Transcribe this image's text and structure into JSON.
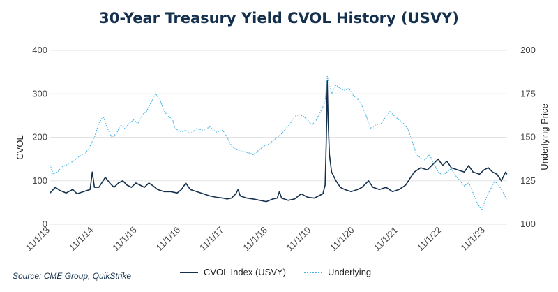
{
  "chart_data": {
    "type": "line",
    "title": "30-Year Treasury Yield CVOL History (USVY)",
    "source": "Source: CME Group, QuikStrike",
    "y_left": {
      "label": "CVOL",
      "ticks": [
        "0",
        "100",
        "200",
        "300",
        "400"
      ],
      "range": [
        0,
        400
      ]
    },
    "y_right": {
      "label": "Underlying Price",
      "ticks": [
        "100",
        "125",
        "150",
        "175",
        "200"
      ],
      "range": [
        100,
        200
      ]
    },
    "x_ticks": [
      "11/1/13",
      "11/1/14",
      "11/1/15",
      "11/1/16",
      "11/1/17",
      "11/1/18",
      "11/1/19",
      "11/1/20",
      "11/1/21",
      "11/1/22",
      "11/1/23"
    ],
    "x_range": [
      2013.833,
      2024.333
    ],
    "grid": true,
    "legend_position": "bottom",
    "series": [
      {
        "name": "CVOL Index (USVY)",
        "axis": "left",
        "color": "#14304d",
        "style": "solid",
        "points": [
          [
            2013.83,
            72
          ],
          [
            2013.95,
            85
          ],
          [
            2014.05,
            78
          ],
          [
            2014.2,
            72
          ],
          [
            2014.35,
            80
          ],
          [
            2014.45,
            70
          ],
          [
            2014.6,
            75
          ],
          [
            2014.75,
            80
          ],
          [
            2014.8,
            120
          ],
          [
            2014.85,
            85
          ],
          [
            2014.95,
            85
          ],
          [
            2015.05,
            100
          ],
          [
            2015.1,
            108
          ],
          [
            2015.2,
            95
          ],
          [
            2015.3,
            85
          ],
          [
            2015.4,
            95
          ],
          [
            2015.5,
            100
          ],
          [
            2015.6,
            90
          ],
          [
            2015.7,
            85
          ],
          [
            2015.8,
            95
          ],
          [
            2015.9,
            90
          ],
          [
            2016.0,
            85
          ],
          [
            2016.1,
            95
          ],
          [
            2016.2,
            88
          ],
          [
            2016.3,
            80
          ],
          [
            2016.45,
            75
          ],
          [
            2016.6,
            75
          ],
          [
            2016.75,
            72
          ],
          [
            2016.85,
            80
          ],
          [
            2016.95,
            95
          ],
          [
            2017.05,
            80
          ],
          [
            2017.2,
            75
          ],
          [
            2017.35,
            70
          ],
          [
            2017.5,
            65
          ],
          [
            2017.65,
            62
          ],
          [
            2017.8,
            60
          ],
          [
            2017.9,
            58
          ],
          [
            2018.0,
            60
          ],
          [
            2018.1,
            70
          ],
          [
            2018.15,
            80
          ],
          [
            2018.2,
            65
          ],
          [
            2018.35,
            60
          ],
          [
            2018.5,
            58
          ],
          [
            2018.65,
            55
          ],
          [
            2018.8,
            52
          ],
          [
            2018.95,
            58
          ],
          [
            2019.05,
            60
          ],
          [
            2019.1,
            75
          ],
          [
            2019.15,
            60
          ],
          [
            2019.3,
            55
          ],
          [
            2019.45,
            58
          ],
          [
            2019.6,
            70
          ],
          [
            2019.75,
            62
          ],
          [
            2019.9,
            60
          ],
          [
            2020.0,
            65
          ],
          [
            2020.1,
            70
          ],
          [
            2020.15,
            90
          ],
          [
            2020.18,
            200
          ],
          [
            2020.2,
            330
          ],
          [
            2020.22,
            240
          ],
          [
            2020.25,
            160
          ],
          [
            2020.3,
            120
          ],
          [
            2020.4,
            100
          ],
          [
            2020.5,
            85
          ],
          [
            2020.6,
            80
          ],
          [
            2020.75,
            75
          ],
          [
            2020.9,
            80
          ],
          [
            2021.0,
            85
          ],
          [
            2021.1,
            95
          ],
          [
            2021.15,
            100
          ],
          [
            2021.25,
            85
          ],
          [
            2021.4,
            80
          ],
          [
            2021.55,
            85
          ],
          [
            2021.7,
            75
          ],
          [
            2021.85,
            80
          ],
          [
            2022.0,
            90
          ],
          [
            2022.1,
            105
          ],
          [
            2022.2,
            120
          ],
          [
            2022.35,
            130
          ],
          [
            2022.5,
            125
          ],
          [
            2022.65,
            140
          ],
          [
            2022.75,
            150
          ],
          [
            2022.85,
            135
          ],
          [
            2022.95,
            145
          ],
          [
            2023.05,
            130
          ],
          [
            2023.2,
            125
          ],
          [
            2023.35,
            120
          ],
          [
            2023.45,
            135
          ],
          [
            2023.55,
            120
          ],
          [
            2023.7,
            115
          ],
          [
            2023.8,
            125
          ],
          [
            2023.9,
            130
          ],
          [
            2024.0,
            120
          ],
          [
            2024.1,
            115
          ],
          [
            2024.2,
            100
          ],
          [
            2024.25,
            110
          ],
          [
            2024.3,
            120
          ],
          [
            2024.33,
            115
          ]
        ]
      },
      {
        "name": "Underlying",
        "axis": "right",
        "color": "#48b4e0",
        "style": "dotted",
        "points": [
          [
            2013.83,
            134
          ],
          [
            2013.9,
            129
          ],
          [
            2014.0,
            130
          ],
          [
            2014.1,
            133
          ],
          [
            2014.2,
            134
          ],
          [
            2014.35,
            136
          ],
          [
            2014.5,
            139
          ],
          [
            2014.65,
            141
          ],
          [
            2014.75,
            145
          ],
          [
            2014.85,
            150
          ],
          [
            2014.95,
            158
          ],
          [
            2015.05,
            162
          ],
          [
            2015.15,
            155
          ],
          [
            2015.25,
            150
          ],
          [
            2015.35,
            152
          ],
          [
            2015.45,
            157
          ],
          [
            2015.55,
            155
          ],
          [
            2015.65,
            158
          ],
          [
            2015.75,
            160
          ],
          [
            2015.85,
            158
          ],
          [
            2015.95,
            163
          ],
          [
            2016.05,
            165
          ],
          [
            2016.15,
            170
          ],
          [
            2016.25,
            175
          ],
          [
            2016.35,
            172
          ],
          [
            2016.45,
            165
          ],
          [
            2016.55,
            162
          ],
          [
            2016.65,
            160
          ],
          [
            2016.7,
            155
          ],
          [
            2016.85,
            153
          ],
          [
            2016.95,
            154
          ],
          [
            2017.05,
            152
          ],
          [
            2017.2,
            155
          ],
          [
            2017.35,
            154
          ],
          [
            2017.5,
            156
          ],
          [
            2017.65,
            153
          ],
          [
            2017.8,
            154
          ],
          [
            2017.9,
            150
          ],
          [
            2018.0,
            145
          ],
          [
            2018.1,
            143
          ],
          [
            2018.25,
            142
          ],
          [
            2018.4,
            141
          ],
          [
            2018.5,
            140
          ],
          [
            2018.6,
            142
          ],
          [
            2018.75,
            145
          ],
          [
            2018.85,
            146
          ],
          [
            2018.95,
            148
          ],
          [
            2019.05,
            150
          ],
          [
            2019.15,
            152
          ],
          [
            2019.25,
            155
          ],
          [
            2019.35,
            158
          ],
          [
            2019.45,
            162
          ],
          [
            2019.55,
            163
          ],
          [
            2019.65,
            162
          ],
          [
            2019.75,
            160
          ],
          [
            2019.85,
            157
          ],
          [
            2019.95,
            160
          ],
          [
            2020.05,
            165
          ],
          [
            2020.15,
            170
          ],
          [
            2020.2,
            185
          ],
          [
            2020.25,
            180
          ],
          [
            2020.3,
            175
          ],
          [
            2020.4,
            180
          ],
          [
            2020.5,
            178
          ],
          [
            2020.6,
            177
          ],
          [
            2020.7,
            178
          ],
          [
            2020.8,
            174
          ],
          [
            2020.9,
            172
          ],
          [
            2021.0,
            168
          ],
          [
            2021.1,
            162
          ],
          [
            2021.2,
            155
          ],
          [
            2021.3,
            157
          ],
          [
            2021.45,
            158
          ],
          [
            2021.55,
            162
          ],
          [
            2021.65,
            165
          ],
          [
            2021.75,
            162
          ],
          [
            2021.85,
            160
          ],
          [
            2021.95,
            158
          ],
          [
            2022.05,
            155
          ],
          [
            2022.15,
            148
          ],
          [
            2022.25,
            140
          ],
          [
            2022.35,
            138
          ],
          [
            2022.45,
            137
          ],
          [
            2022.55,
            140
          ],
          [
            2022.65,
            135
          ],
          [
            2022.75,
            130
          ],
          [
            2022.85,
            128
          ],
          [
            2022.95,
            130
          ],
          [
            2023.05,
            132
          ],
          [
            2023.15,
            128
          ],
          [
            2023.25,
            125
          ],
          [
            2023.35,
            122
          ],
          [
            2023.45,
            124
          ],
          [
            2023.55,
            118
          ],
          [
            2023.65,
            112
          ],
          [
            2023.75,
            108
          ],
          [
            2023.85,
            115
          ],
          [
            2023.95,
            120
          ],
          [
            2024.05,
            125
          ],
          [
            2024.15,
            122
          ],
          [
            2024.25,
            118
          ],
          [
            2024.33,
            114
          ]
        ]
      }
    ]
  }
}
